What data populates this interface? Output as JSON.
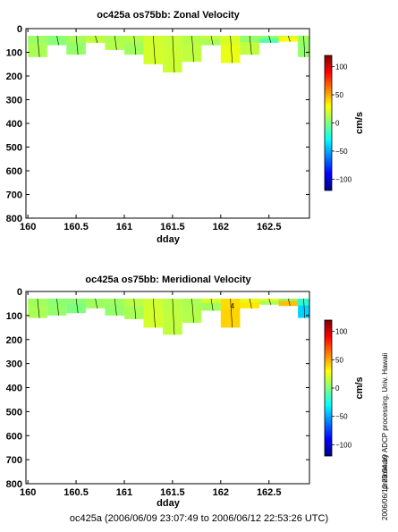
{
  "caption": "oc425a (2006/06/09 23:07:49 to 2006/06/12 22:53:26 UTC)",
  "side_notes": {
    "processing": "preliminary ADCP processing,  Univ. Hawaii",
    "timestamp": "2006/06/12 23:04:10"
  },
  "colormap": [
    "#00007f",
    "#0000ff",
    "#007fff",
    "#00ffff",
    "#7fff7f",
    "#ffff00",
    "#ff7f00",
    "#ff0000",
    "#7f0000"
  ],
  "chart_data": [
    {
      "type": "heatmap",
      "title": "oc425a os75bb: Zonal Velocity",
      "xlabel": "dday",
      "ylabel": "",
      "xlim": [
        159.98,
        162.92
      ],
      "ylim": [
        800,
        0
      ],
      "x_ticks": [
        "160",
        "160.5",
        "161",
        "161.5",
        "162",
        "162.5"
      ],
      "y_ticks": [
        "0",
        "100",
        "200",
        "300",
        "400",
        "500",
        "600",
        "700",
        "800"
      ],
      "colorbar": {
        "label": "cm/s",
        "range": [
          -120,
          120
        ],
        "ticks": [
          "100",
          "50",
          "0",
          "−50",
          "−100"
        ]
      },
      "x": [
        160.0,
        160.2,
        160.4,
        160.6,
        160.8,
        161.0,
        161.2,
        161.4,
        161.6,
        161.8,
        162.0,
        162.2,
        162.4,
        162.6,
        162.8
      ],
      "depth_bottom": [
        120,
        70,
        110,
        60,
        90,
        110,
        150,
        185,
        140,
        70,
        145,
        110,
        60,
        55,
        120
      ],
      "values": [
        10,
        2,
        5,
        15,
        12,
        8,
        20,
        18,
        15,
        10,
        25,
        15,
        -10,
        30,
        5
      ],
      "grid": false
    },
    {
      "type": "heatmap",
      "title": "oc425a os75bb: Meridional Velocity",
      "xlabel": "dday",
      "ylabel": "",
      "xlim": [
        159.98,
        162.92
      ],
      "ylim": [
        800,
        0
      ],
      "x_ticks": [
        "160",
        "160.5",
        "161",
        "161.5",
        "162",
        "162.5"
      ],
      "y_ticks": [
        "0",
        "100",
        "200",
        "300",
        "400",
        "500",
        "600",
        "700",
        "800"
      ],
      "colorbar": {
        "label": "cm/s",
        "range": [
          -120,
          120
        ],
        "ticks": [
          "100",
          "50",
          "0",
          "−50",
          "−100"
        ]
      },
      "x": [
        160.0,
        160.2,
        160.4,
        160.6,
        160.8,
        161.0,
        161.2,
        161.4,
        161.6,
        161.8,
        162.0,
        162.2,
        162.4,
        162.6,
        162.8
      ],
      "depth_bottom": [
        110,
        100,
        90,
        70,
        100,
        115,
        150,
        180,
        130,
        80,
        150,
        70,
        55,
        60,
        110
      ],
      "values": [
        10,
        5,
        0,
        8,
        5,
        10,
        20,
        15,
        12,
        8,
        40,
        35,
        10,
        45,
        -40
      ],
      "annotations": [
        "4"
      ],
      "grid": false
    }
  ]
}
